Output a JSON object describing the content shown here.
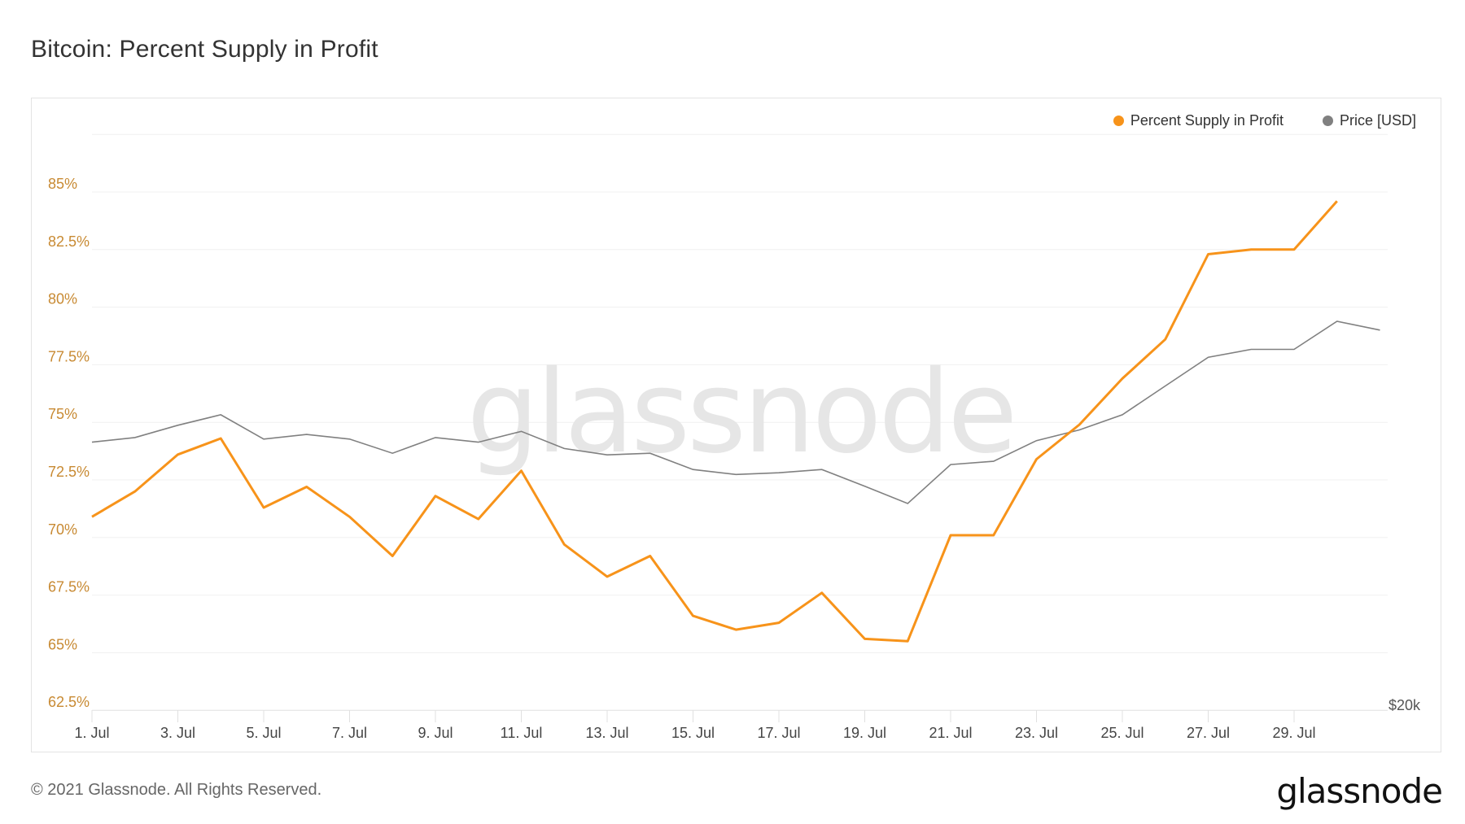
{
  "title": "Bitcoin: Percent Supply in Profit",
  "legend": [
    {
      "label": "Percent Supply in Profit",
      "color": "#f7931a"
    },
    {
      "label": "Price [USD]",
      "color": "#808080"
    }
  ],
  "watermark": "glassnode",
  "footer": "© 2021 Glassnode. All Rights Reserved.",
  "logo": "glassnode",
  "right_axis_label": "$20k",
  "chart_data": {
    "type": "line",
    "title": "Bitcoin: Percent Supply in Profit",
    "xlabel": "",
    "ylabel": "Percent Supply in Profit",
    "ylim": [
      62.5,
      87.5
    ],
    "y_ticks": [
      "85%",
      "82.5%",
      "80%",
      "77.5%",
      "75%",
      "72.5%",
      "70%",
      "67.5%",
      "65%",
      "62.5%"
    ],
    "x_ticks": [
      "1. Jul",
      "3. Jul",
      "5. Jul",
      "7. Jul",
      "9. Jul",
      "11. Jul",
      "13. Jul",
      "15. Jul",
      "17. Jul",
      "19. Jul",
      "21. Jul",
      "23. Jul",
      "25. Jul",
      "27. Jul",
      "29. Jul"
    ],
    "right_axis_ticks": [
      "$20k"
    ],
    "grid": true,
    "legend_position": "top-right",
    "x": [
      "1 Jul",
      "2 Jul",
      "3 Jul",
      "4 Jul",
      "5 Jul",
      "6 Jul",
      "7 Jul",
      "8 Jul",
      "9 Jul",
      "10 Jul",
      "11 Jul",
      "12 Jul",
      "13 Jul",
      "14 Jul",
      "15 Jul",
      "16 Jul",
      "17 Jul",
      "18 Jul",
      "19 Jul",
      "20 Jul",
      "21 Jul",
      "22 Jul",
      "23 Jul",
      "24 Jul",
      "25 Jul",
      "26 Jul",
      "27 Jul",
      "28 Jul",
      "29 Jul",
      "30 Jul",
      "31 Jul"
    ],
    "series": [
      {
        "name": "Percent Supply in Profit",
        "color": "#f7931a",
        "axis": "left",
        "values": [
          70.9,
          72.0,
          73.6,
          74.3,
          71.3,
          72.2,
          70.9,
          69.2,
          71.8,
          70.8,
          72.9,
          69.7,
          68.3,
          69.2,
          66.6,
          66.0,
          66.3,
          67.6,
          65.6,
          65.5,
          70.1,
          70.1,
          73.4,
          74.9,
          76.9,
          78.6,
          82.3,
          82.5,
          82.5,
          84.6,
          null
        ]
      },
      {
        "name": "Price [USD]",
        "color": "#808080",
        "axis": "right",
        "values": [
          33500,
          33800,
          34600,
          35300,
          33700,
          34000,
          33700,
          32800,
          33800,
          33500,
          34200,
          33100,
          32700,
          32800,
          31800,
          31500,
          31600,
          31800,
          30800,
          29800,
          32100,
          32300,
          33600,
          34300,
          35300,
          37300,
          39400,
          40000,
          40000,
          42200,
          41500
        ]
      }
    ]
  }
}
